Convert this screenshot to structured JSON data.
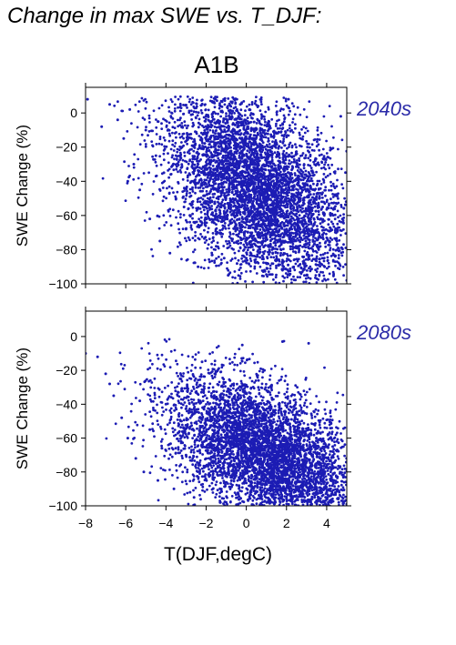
{
  "title": "Change in max SWE vs. T_DJF:",
  "scenario": "A1B",
  "colors": {
    "points": "#1c1cb4",
    "period_label": "#2a2aa8",
    "axes": "#000000"
  },
  "chart_data": [
    {
      "type": "scatter",
      "period_label": "2040s",
      "ylabel": "SWE Change (%)",
      "xlabel": "",
      "xlim": [
        -8,
        5
      ],
      "ylim": [
        -100,
        15
      ],
      "yticks": [
        0,
        -20,
        -40,
        -60,
        -80,
        -100
      ],
      "xticks": [],
      "grid": false,
      "x": [
        -7.9,
        -7.2,
        -6.8,
        -6.4,
        -6.1,
        -5.8,
        -5.6,
        -5.3,
        -5.0,
        -4.8,
        -4.5,
        -4.3,
        -4.1,
        -3.8,
        -3.5,
        -3.2,
        -3.0,
        -2.7,
        -2.4,
        -2.1,
        -1.8,
        -1.5,
        -1.2,
        -0.9,
        -0.6,
        -0.3,
        0.0,
        0.3,
        0.6,
        0.9,
        1.2,
        1.5,
        1.8,
        2.1,
        2.4,
        2.7,
        3.0,
        3.3,
        3.6,
        3.9,
        4.2,
        4.6,
        5.0,
        -5.9,
        -4.4,
        -3.1,
        -2.2,
        -1.1,
        -0.2,
        0.8,
        1.9,
        2.9,
        3.8,
        4.7
      ],
      "y": [
        8,
        -8,
        5,
        -4,
        -15,
        2,
        -30,
        -45,
        -10,
        -62,
        -25,
        -75,
        -35,
        -82,
        -50,
        -20,
        -68,
        -40,
        -90,
        -55,
        -5,
        -78,
        -30,
        -95,
        -60,
        5,
        -85,
        -45,
        -70,
        -92,
        -20,
        -65,
        -88,
        8,
        -75,
        -50,
        -95,
        -35,
        -80,
        -90,
        -60,
        -85,
        -98,
        -40,
        -5,
        -55,
        0,
        -85,
        -25,
        -10,
        -45,
        -70,
        -55,
        -2
      ],
      "density_clouds": [
        {
          "x_range": [
            -8,
            5
          ],
          "y_range": [
            -100,
            10
          ],
          "center": [
            0.5,
            -45
          ],
          "n": 5200
        }
      ]
    },
    {
      "type": "scatter",
      "period_label": "2080s",
      "ylabel": "SWE Change (%)",
      "xlabel": "T(DJF,degC)",
      "xlim": [
        -8,
        5
      ],
      "ylim": [
        -100,
        15
      ],
      "yticks": [
        0,
        -20,
        -40,
        -60,
        -80,
        -100
      ],
      "xticks": [
        -8,
        -6,
        -4,
        -2,
        0,
        2,
        4
      ],
      "grid": false,
      "x": [
        -8.0,
        -7.4,
        -7.0,
        -6.6,
        -6.2,
        -5.9,
        -5.5,
        -5.1,
        -4.8,
        -4.4,
        -4.0,
        -3.6,
        -3.3,
        -3.0,
        -2.6,
        -2.2,
        -1.8,
        -1.4,
        -1.0,
        -0.6,
        -0.2,
        0.2,
        0.6,
        1.0,
        1.4,
        1.8,
        2.2,
        2.6,
        3.0,
        3.4,
        3.8,
        4.2,
        4.6,
        5.0,
        -6.8,
        -5.3,
        -4.2,
        -2.8,
        -1.6,
        -0.4,
        0.9,
        2.0,
        3.1,
        4.3
      ],
      "y": [
        -10,
        -12,
        -22,
        -35,
        -48,
        -60,
        -72,
        -80,
        -55,
        -85,
        -40,
        -90,
        -25,
        -70,
        -95,
        -15,
        -82,
        -50,
        -98,
        -65,
        -5,
        -88,
        -30,
        -92,
        -75,
        -3,
        -97,
        -60,
        -85,
        -95,
        -70,
        -90,
        -98,
        -99,
        -28,
        -38,
        -66,
        -92,
        -45,
        -99,
        -20,
        -96,
        -4,
        -65
      ],
      "density_clouds": [
        {
          "x_range": [
            -8,
            5
          ],
          "y_range": [
            -100,
            0
          ],
          "center": [
            1,
            -70
          ],
          "n": 5200
        }
      ]
    }
  ]
}
